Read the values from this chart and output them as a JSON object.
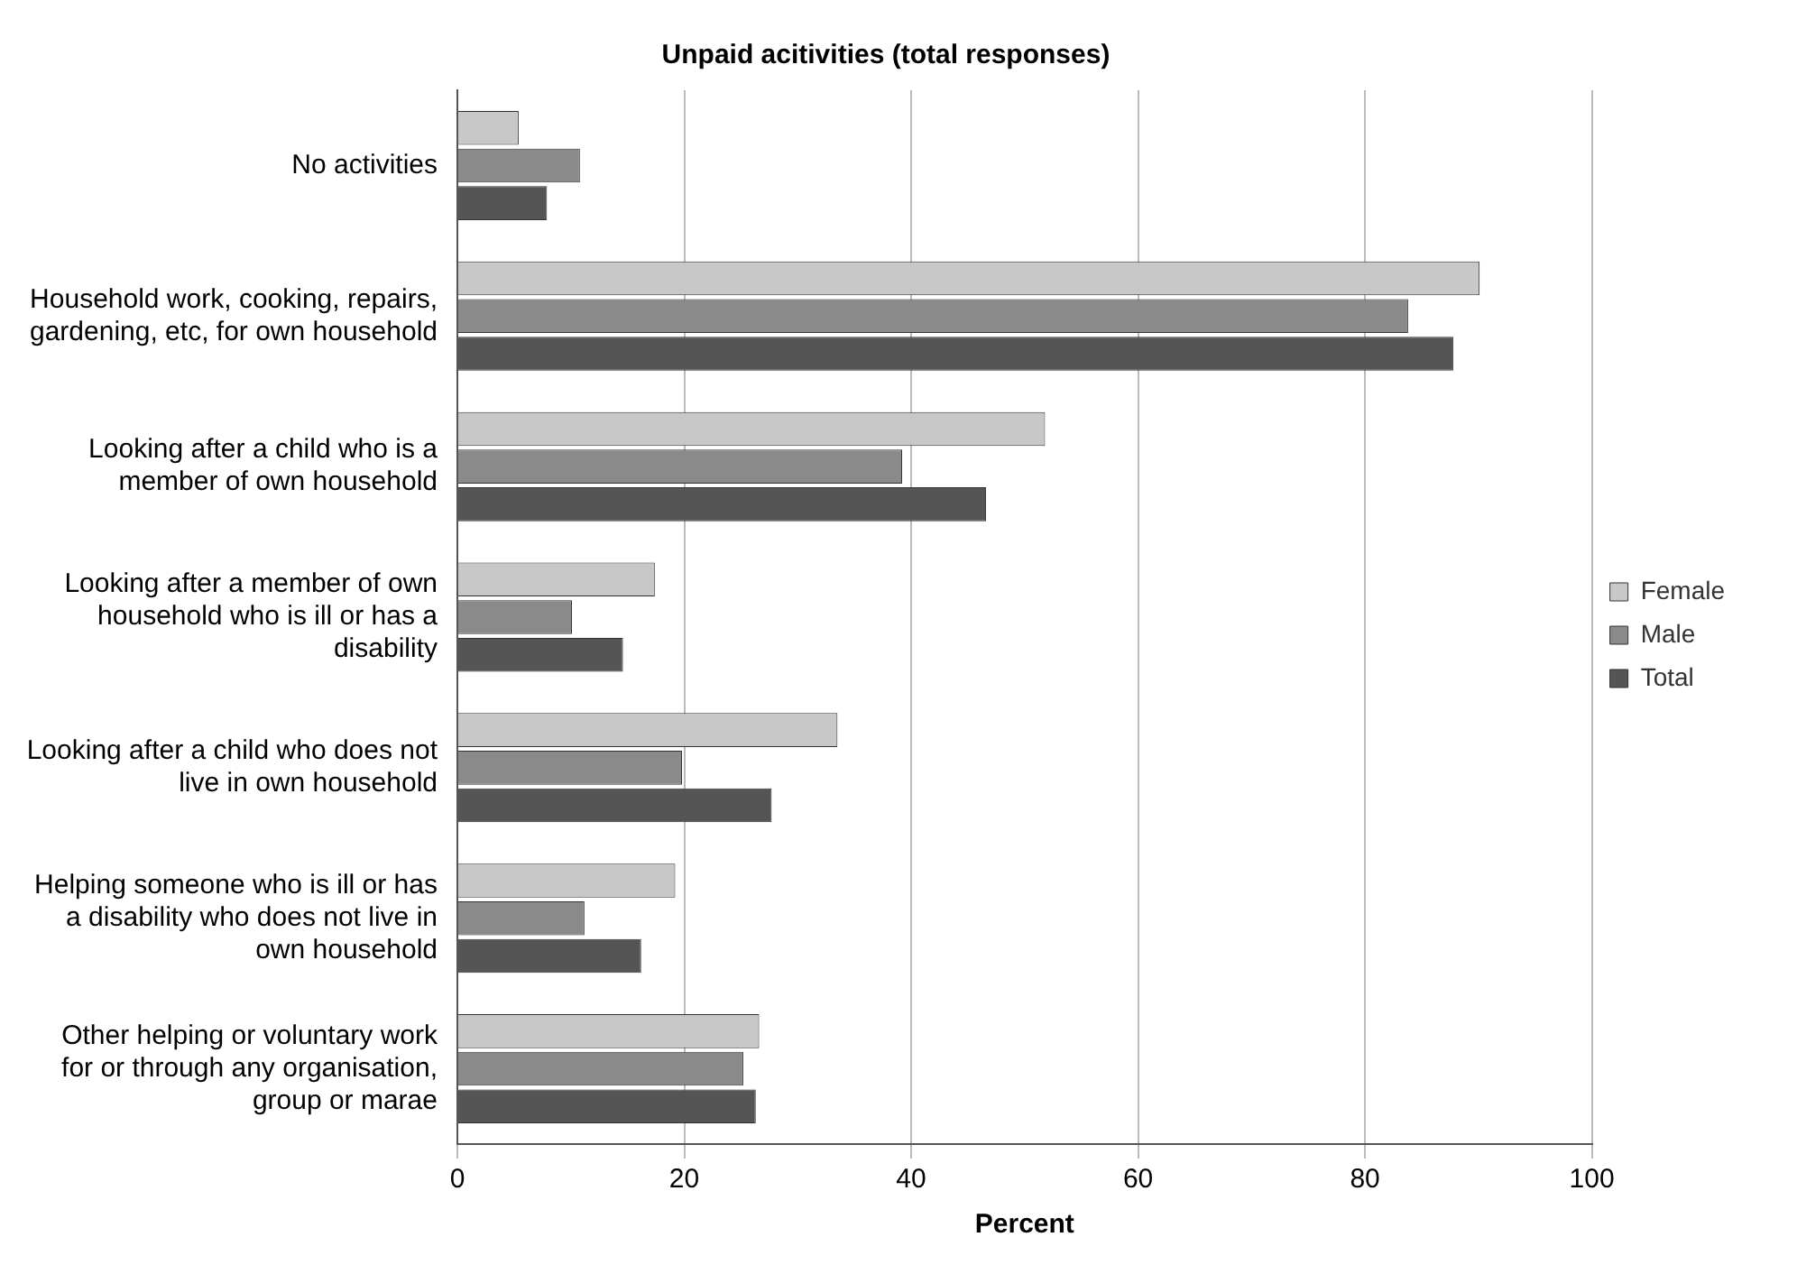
{
  "chart_data": {
    "type": "bar",
    "orientation": "horizontal",
    "title": "Unpaid acitivities (total responses)",
    "xlabel": "Percent",
    "categories": [
      "No activities",
      "Household work, cooking, repairs, gardening, etc, for own household",
      "Looking after a child who is a member of own household",
      "Looking after a member of own household who is ill or has a disability",
      "Looking after a child who does not live in own household",
      "Helping someone who is ill or has a disability who does not live in own household",
      "Other helping or voluntary work for or through any organisation, group or marae"
    ],
    "series": [
      {
        "name": "Female",
        "color": "#c8c8c8",
        "values": [
          5.4,
          90.1,
          51.8,
          17.4,
          33.5,
          19.2,
          26.6
        ]
      },
      {
        "name": "Male",
        "color": "#8a8a8a",
        "values": [
          10.8,
          83.8,
          39.2,
          10.1,
          19.8,
          11.2,
          25.2
        ]
      },
      {
        "name": "Total",
        "color": "#555555",
        "values": [
          7.9,
          87.8,
          46.6,
          14.6,
          27.7,
          16.2,
          26.3
        ]
      }
    ],
    "xlim": [
      0,
      100
    ],
    "xticks": [
      0,
      20,
      40,
      60,
      80,
      100
    ],
    "grid": "x",
    "legend": "right"
  }
}
